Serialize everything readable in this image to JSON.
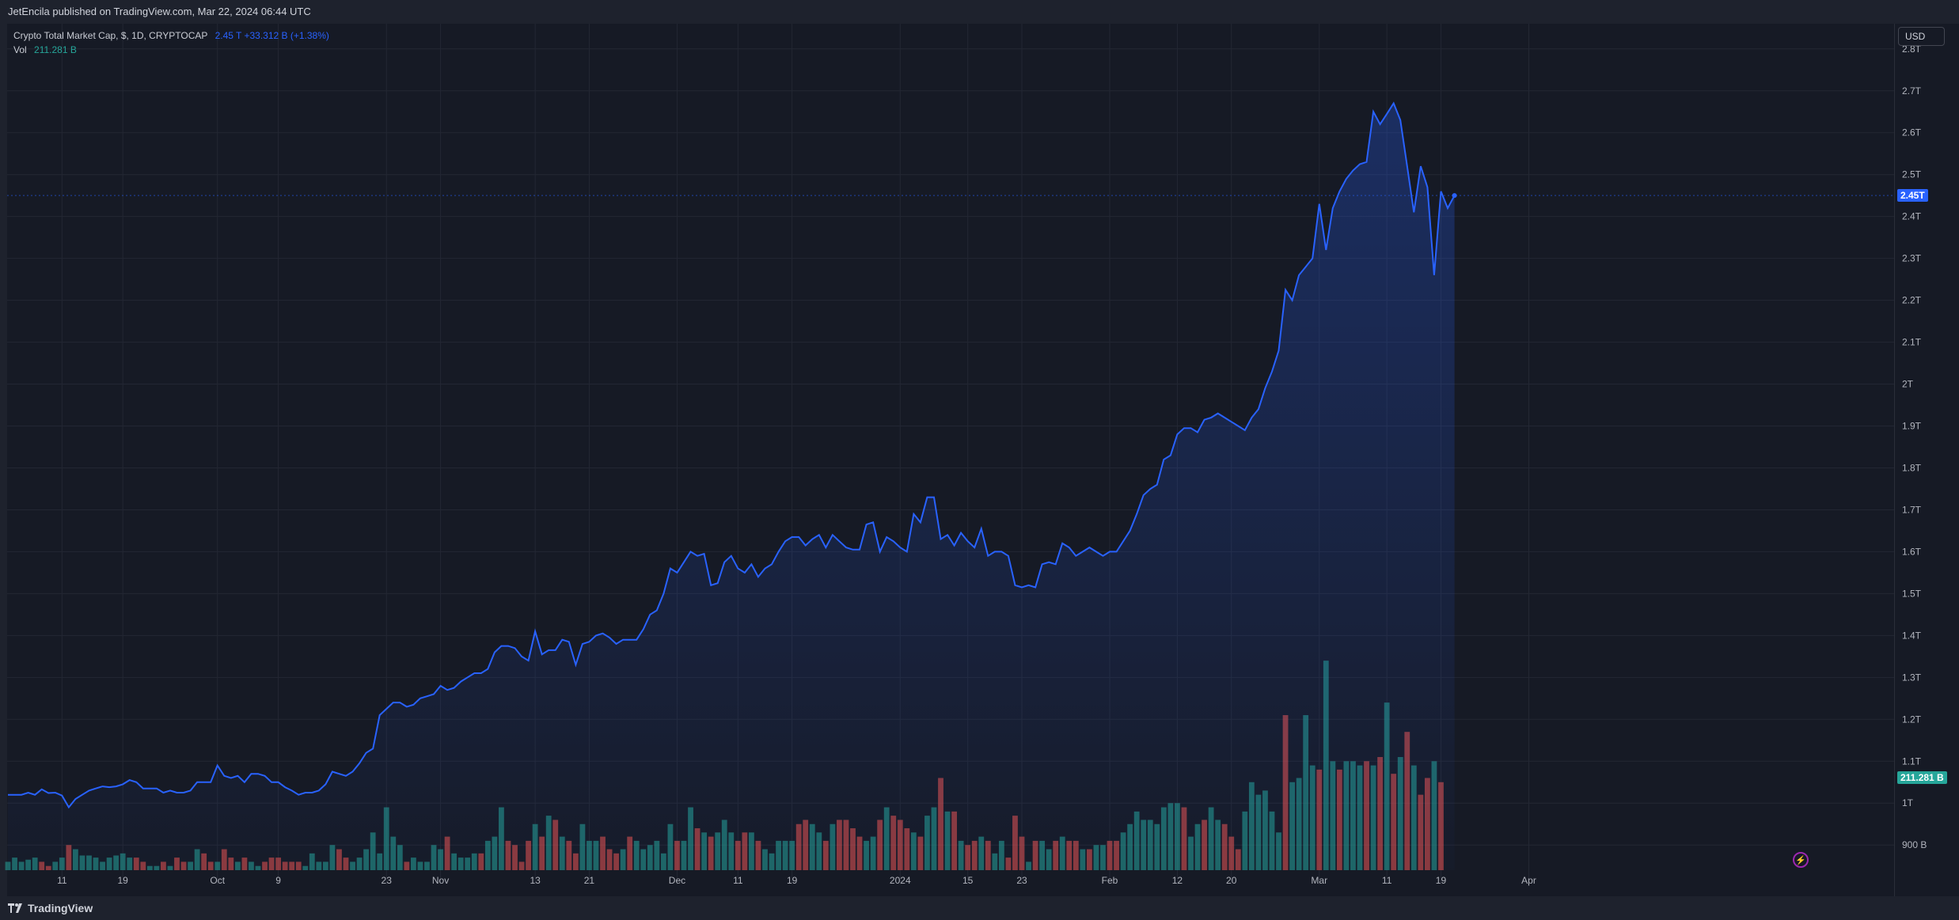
{
  "header": {
    "publisher_text": "JetEncila published on TradingView.com, Mar 22, 2024 06:44 UTC"
  },
  "legend": {
    "symbol_text": "Crypto Total Market Cap, $, 1D, CRYPTOCAP",
    "price_values": "2.45 T  +33.312 B (+1.38%)",
    "volume_label": "Vol",
    "volume_value": "211.281 B"
  },
  "axis": {
    "currency_button": "USD"
  },
  "badges": {
    "last_price": "2.45T",
    "last_volume": "211.281 B"
  },
  "footer": {
    "brand": "TradingView"
  },
  "colors": {
    "line": "#2962ff",
    "up_volume": "#26a69a",
    "down_volume": "#ef5350",
    "background": "#161a25",
    "grid": "#232733"
  },
  "chart_data": {
    "type": "area",
    "series": [
      {
        "type": "area",
        "values": [
          1.02,
          1.02,
          1.02,
          1.025,
          1.02,
          1.033,
          1.024,
          1.025,
          1.018,
          0.99,
          1.01,
          1.02,
          1.03,
          1.035,
          1.04,
          1.038,
          1.04,
          1.045,
          1.055,
          1.05,
          1.035,
          1.035,
          1.035,
          1.025,
          1.03,
          1.025,
          1.025,
          1.03,
          1.05,
          1.05,
          1.05,
          1.09,
          1.065,
          1.06,
          1.065,
          1.05,
          1.07,
          1.07,
          1.065,
          1.05,
          1.05,
          1.038,
          1.03,
          1.02,
          1.025,
          1.025,
          1.03,
          1.045,
          1.075,
          1.07,
          1.065,
          1.075,
          1.095,
          1.12,
          1.13,
          1.21,
          1.225,
          1.24,
          1.24,
          1.23,
          1.235,
          1.25,
          1.255,
          1.26,
          1.28,
          1.27,
          1.275,
          1.29,
          1.3,
          1.31,
          1.31,
          1.32,
          1.36,
          1.375,
          1.375,
          1.37,
          1.35,
          1.34,
          1.41,
          1.355,
          1.365,
          1.365,
          1.39,
          1.385,
          1.33,
          1.38,
          1.385,
          1.4,
          1.405,
          1.395,
          1.38,
          1.39,
          1.39,
          1.39,
          1.415,
          1.45,
          1.46,
          1.5,
          1.56,
          1.55,
          1.575,
          1.6,
          1.59,
          1.595,
          1.52,
          1.525,
          1.575,
          1.59,
          1.56,
          1.55,
          1.57,
          1.54,
          1.56,
          1.57,
          1.6,
          1.625,
          1.635,
          1.635,
          1.615,
          1.63,
          1.64,
          1.61,
          1.64,
          1.625,
          1.61,
          1.605,
          1.605,
          1.665,
          1.67,
          1.6,
          1.635,
          1.625,
          1.61,
          1.6,
          1.69,
          1.67,
          1.73,
          1.73,
          1.63,
          1.64,
          1.615,
          1.645,
          1.625,
          1.61,
          1.655,
          1.59,
          1.6,
          1.6,
          1.59,
          1.52,
          1.515,
          1.52,
          1.515,
          1.57,
          1.575,
          1.57,
          1.62,
          1.61,
          1.59,
          1.6,
          1.61,
          1.6,
          1.59,
          1.6,
          1.6,
          1.625,
          1.65,
          1.69,
          1.735,
          1.75,
          1.76,
          1.82,
          1.83,
          1.88,
          1.895,
          1.895,
          1.885,
          1.915,
          1.92,
          1.93,
          1.92,
          1.91,
          1.9,
          1.89,
          1.92,
          1.94,
          1.99,
          2.03,
          2.08,
          2.225,
          2.2,
          2.26,
          2.28,
          2.3,
          2.43,
          2.32,
          2.42,
          2.46,
          2.49,
          2.51,
          2.525,
          2.53,
          2.65,
          2.62,
          2.645,
          2.67,
          2.63,
          2.52,
          2.41,
          2.52,
          2.47,
          2.26,
          2.46,
          2.42,
          2.45
        ],
        "y_axis_unit": "T"
      },
      {
        "type": "volume",
        "values": [
          0.86,
          0.87,
          0.86,
          0.865,
          0.87,
          0.86,
          0.85,
          0.86,
          0.87,
          0.9,
          0.89,
          0.875,
          0.875,
          0.87,
          0.86,
          0.87,
          0.875,
          0.88,
          0.87,
          0.87,
          0.86,
          0.85,
          0.85,
          0.86,
          0.85,
          0.87,
          0.86,
          0.86,
          0.89,
          0.88,
          0.86,
          0.86,
          0.89,
          0.87,
          0.86,
          0.87,
          0.86,
          0.85,
          0.86,
          0.87,
          0.87,
          0.86,
          0.86,
          0.86,
          0.85,
          0.88,
          0.86,
          0.86,
          0.9,
          0.89,
          0.87,
          0.86,
          0.87,
          0.89,
          0.93,
          0.88,
          0.99,
          0.92,
          0.9,
          0.86,
          0.87,
          0.86,
          0.86,
          0.9,
          0.89,
          0.92,
          0.88,
          0.87,
          0.87,
          0.88,
          0.88,
          0.91,
          0.92,
          0.99,
          0.91,
          0.9,
          0.86,
          0.91,
          0.95,
          0.92,
          0.97,
          0.96,
          0.92,
          0.91,
          0.88,
          0.95,
          0.91,
          0.91,
          0.92,
          0.89,
          0.88,
          0.89,
          0.92,
          0.91,
          0.89,
          0.9,
          0.91,
          0.88,
          0.95,
          0.91,
          0.91,
          0.99,
          0.94,
          0.93,
          0.92,
          0.93,
          0.96,
          0.93,
          0.91,
          0.93,
          0.93,
          0.91,
          0.89,
          0.88,
          0.91,
          0.91,
          0.91,
          0.95,
          0.96,
          0.95,
          0.93,
          0.91,
          0.95,
          0.96,
          0.96,
          0.94,
          0.92,
          0.91,
          0.92,
          0.96,
          0.99,
          0.97,
          0.96,
          0.94,
          0.93,
          0.92,
          0.97,
          0.99,
          1.06,
          0.98,
          0.98,
          0.91,
          0.9,
          0.91,
          0.92,
          0.91,
          0.88,
          0.91,
          0.87,
          0.97,
          0.92,
          0.86,
          0.91,
          0.91,
          0.89,
          0.91,
          0.92,
          0.91,
          0.91,
          0.89,
          0.89,
          0.9,
          0.9,
          0.91,
          0.91,
          0.93,
          0.95,
          0.98,
          0.96,
          0.96,
          0.95,
          0.99,
          1.0,
          1.0,
          0.99,
          0.92,
          0.95,
          0.96,
          0.99,
          0.96,
          0.95,
          0.92,
          0.89,
          0.98,
          1.05,
          1.02,
          1.03,
          0.98,
          0.93,
          1.21,
          1.05,
          1.06,
          1.21,
          1.09,
          1.08,
          1.34,
          1.1,
          1.08,
          1.1,
          1.1,
          1.09,
          1.1,
          1.09,
          1.11,
          1.24,
          1.07,
          1.11,
          1.17,
          1.09,
          1.02,
          1.06,
          1.1,
          1.05
        ],
        "up": [
          true,
          true,
          true,
          true,
          true,
          false,
          false,
          true,
          true,
          false,
          true,
          true,
          true,
          true,
          true,
          true,
          true,
          true,
          true,
          false,
          false,
          true,
          true,
          false,
          true,
          false,
          false,
          true,
          true,
          false,
          false,
          true,
          false,
          false,
          true,
          false,
          true,
          true,
          false,
          false,
          false,
          false,
          false,
          false,
          true,
          true,
          true,
          true,
          true,
          false,
          false,
          true,
          true,
          true,
          true,
          true,
          true,
          true,
          true,
          false,
          true,
          true,
          true,
          true,
          true,
          false,
          true,
          true,
          true,
          true,
          false,
          true,
          true,
          true,
          false,
          false,
          false,
          false,
          true,
          false,
          true,
          false,
          true,
          false,
          false,
          true,
          true,
          true,
          false,
          false,
          false,
          true,
          false,
          true,
          true,
          true,
          true,
          true,
          true,
          false,
          true,
          true,
          false,
          true,
          false,
          true,
          true,
          true,
          false,
          false,
          true,
          false,
          true,
          true,
          true,
          true,
          true,
          false,
          false,
          true,
          true,
          false,
          true,
          false,
          false,
          false,
          false,
          true,
          true,
          false,
          true,
          false,
          false,
          false,
          true,
          false,
          true,
          true,
          false,
          true,
          false,
          true,
          false,
          false,
          true,
          false,
          true,
          true,
          false,
          false,
          false,
          true,
          false,
          true,
          true,
          false,
          true,
          false,
          false,
          true,
          false,
          true,
          true,
          false,
          false,
          true,
          true,
          true,
          true,
          true,
          true,
          true,
          true,
          true,
          false,
          true,
          true,
          false,
          true,
          true,
          false,
          false,
          false,
          true,
          true,
          true,
          true,
          true,
          true,
          false,
          true,
          true,
          true,
          true,
          false,
          true,
          true,
          false,
          true,
          true,
          true,
          false,
          true,
          false,
          true,
          false,
          true,
          false,
          true,
          false,
          false,
          true,
          false,
          true
        ],
        "last_value_label": "211.281 B"
      }
    ],
    "y_ticks": [
      "2.8T",
      "2.7T",
      "2.6T",
      "2.5T",
      "2.4T",
      "2.3T",
      "2.2T",
      "2.1T",
      "2T",
      "1.9T",
      "1.8T",
      "1.7T",
      "1.6T",
      "1.5T",
      "1.4T",
      "1.3T",
      "1.2T",
      "1.1T",
      "1T",
      "900 B"
    ],
    "y_tick_values": [
      2.8,
      2.7,
      2.6,
      2.5,
      2.4,
      2.3,
      2.2,
      2.1,
      2.0,
      1.9,
      1.8,
      1.7,
      1.6,
      1.5,
      1.4,
      1.3,
      1.2,
      1.1,
      1.0,
      0.9
    ],
    "x_ticks": [
      "11",
      "19",
      "Oct",
      "9",
      "23",
      "Nov",
      "13",
      "21",
      "Dec",
      "11",
      "19",
      "2024",
      "15",
      "23",
      "Feb",
      "12",
      "20",
      "Mar",
      "11",
      "19",
      "Apr"
    ],
    "x_tick_index": [
      8,
      17,
      31,
      40,
      56,
      64,
      78,
      86,
      99,
      108,
      116,
      132,
      142,
      150,
      163,
      173,
      181,
      194,
      204,
      212,
      225
    ],
    "ylim": [
      0.84,
      2.86
    ],
    "grid": true
  }
}
